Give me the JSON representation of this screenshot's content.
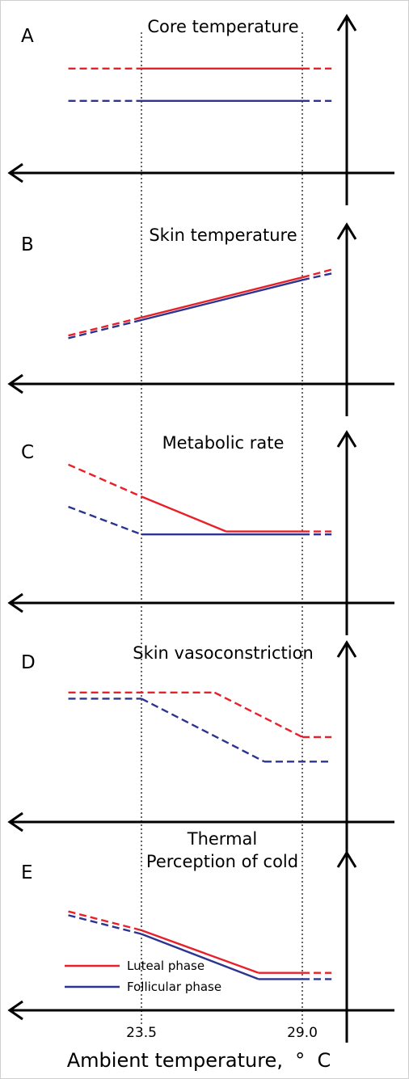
{
  "chart_data": [
    {
      "type": "line",
      "panel": "A",
      "title": "Core temperature",
      "x_ticks": [
        "23.5",
        "29.0"
      ],
      "series": [
        {
          "color": "#e8202a",
          "segments": [
            {
              "x": [
                21.0,
                23.5
              ],
              "y": [
                0.72,
                0.72
              ],
              "style": "dashed"
            },
            {
              "x": [
                23.5,
                29.0
              ],
              "y": [
                0.72,
                0.72
              ],
              "style": "solid"
            },
            {
              "x": [
                29.0,
                30.0
              ],
              "y": [
                0.72,
                0.72
              ],
              "style": "dashed"
            }
          ]
        },
        {
          "color": "#2b3590",
          "segments": [
            {
              "x": [
                21.0,
                23.5
              ],
              "y": [
                0.47,
                0.47
              ],
              "style": "dashed"
            },
            {
              "x": [
                23.5,
                29.0
              ],
              "y": [
                0.47,
                0.47
              ],
              "style": "solid"
            },
            {
              "x": [
                29.0,
                30.0
              ],
              "y": [
                0.47,
                0.47
              ],
              "style": "dashed"
            }
          ]
        }
      ]
    },
    {
      "type": "line",
      "panel": "B",
      "title": "Skin temperature",
      "x_ticks": [
        "23.5",
        "29.0"
      ],
      "series": [
        {
          "color": "#e8202a",
          "segments": [
            {
              "x": [
                21.0,
                23.5
              ],
              "y": [
                0.28,
                0.42
              ],
              "style": "dashed"
            },
            {
              "x": [
                23.5,
                29.0
              ],
              "y": [
                0.42,
                0.73
              ],
              "style": "solid"
            },
            {
              "x": [
                29.0,
                30.0
              ],
              "y": [
                0.73,
                0.79
              ],
              "style": "dashed"
            }
          ]
        },
        {
          "color": "#2b3590",
          "segments": [
            {
              "x": [
                21.0,
                23.5
              ],
              "y": [
                0.26,
                0.4
              ],
              "style": "dashed"
            },
            {
              "x": [
                23.5,
                29.0
              ],
              "y": [
                0.4,
                0.71
              ],
              "style": "solid"
            },
            {
              "x": [
                29.0,
                30.0
              ],
              "y": [
                0.71,
                0.76
              ],
              "style": "dashed"
            }
          ]
        }
      ]
    },
    {
      "type": "line",
      "panel": "C",
      "title": "Metabolic rate",
      "x_ticks": [
        "23.5",
        "29.0"
      ],
      "series": [
        {
          "color": "#e8202a",
          "segments": [
            {
              "x": [
                21.0,
                23.5
              ],
              "y": [
                0.89,
                0.67
              ],
              "style": "dashed"
            },
            {
              "x": [
                23.5,
                26.4
              ],
              "y": [
                0.67,
                0.43
              ],
              "style": "solid"
            },
            {
              "x": [
                26.4,
                29.0
              ],
              "y": [
                0.43,
                0.43
              ],
              "style": "solid"
            },
            {
              "x": [
                29.0,
                30.0
              ],
              "y": [
                0.43,
                0.43
              ],
              "style": "dashed"
            }
          ]
        },
        {
          "color": "#2b3590",
          "segments": [
            {
              "x": [
                21.0,
                23.5
              ],
              "y": [
                0.6,
                0.41
              ],
              "style": "dashed"
            },
            {
              "x": [
                23.5,
                29.0
              ],
              "y": [
                0.41,
                0.41
              ],
              "style": "solid"
            },
            {
              "x": [
                29.0,
                30.0
              ],
              "y": [
                0.41,
                0.41
              ],
              "style": "dashed"
            }
          ]
        }
      ]
    },
    {
      "type": "line",
      "panel": "D",
      "title": "Skin vasoconstriction",
      "x_ticks": [
        "23.5",
        "29.0"
      ],
      "series": [
        {
          "color": "#e8202a",
          "segments": [
            {
              "x": [
                21.0,
                26.0
              ],
              "y": [
                0.78,
                0.78
              ],
              "style": "dashed"
            },
            {
              "x": [
                26.0,
                29.0
              ],
              "y": [
                0.78,
                0.49
              ],
              "style": "dashed"
            },
            {
              "x": [
                29.0,
                30.0
              ],
              "y": [
                0.49,
                0.49
              ],
              "style": "dashed"
            }
          ]
        },
        {
          "color": "#2b3590",
          "segments": [
            {
              "x": [
                21.0,
                23.5
              ],
              "y": [
                0.74,
                0.74
              ],
              "style": "dashed"
            },
            {
              "x": [
                23.5,
                27.7
              ],
              "y": [
                0.74,
                0.33
              ],
              "style": "dashed"
            },
            {
              "x": [
                27.7,
                30.0
              ],
              "y": [
                0.33,
                0.33
              ],
              "style": "dashed"
            }
          ]
        }
      ]
    },
    {
      "type": "line",
      "panel": "E",
      "title": "Thermal\nPerception of cold",
      "x_ticks": [
        "23.5",
        "29.0"
      ],
      "series": [
        {
          "name": "Luteal phase",
          "color": "#e8202a",
          "segments": [
            {
              "x": [
                21.0,
                23.5
              ],
              "y": [
                0.66,
                0.51
              ],
              "style": "dashed"
            },
            {
              "x": [
                23.5,
                27.5
              ],
              "y": [
                0.51,
                0.17
              ],
              "style": "solid"
            },
            {
              "x": [
                27.5,
                29.0
              ],
              "y": [
                0.17,
                0.17
              ],
              "style": "solid"
            },
            {
              "x": [
                29.0,
                30.0
              ],
              "y": [
                0.17,
                0.17
              ],
              "style": "dashed"
            }
          ]
        },
        {
          "name": "Follicular phase",
          "color": "#2b3590",
          "segments": [
            {
              "x": [
                21.0,
                23.5
              ],
              "y": [
                0.63,
                0.48
              ],
              "style": "dashed"
            },
            {
              "x": [
                23.5,
                27.5
              ],
              "y": [
                0.48,
                0.12
              ],
              "style": "solid"
            },
            {
              "x": [
                27.5,
                29.0
              ],
              "y": [
                0.12,
                0.12
              ],
              "style": "solid"
            },
            {
              "x": [
                29.0,
                30.0
              ],
              "y": [
                0.12,
                0.12
              ],
              "style": "dashed"
            }
          ]
        }
      ],
      "legend": [
        "Luteal phase",
        "Follicular phase"
      ]
    }
  ],
  "xlabel": "Ambient temperature,  °  C",
  "x_ticks": [
    "23.5",
    "29.0"
  ]
}
